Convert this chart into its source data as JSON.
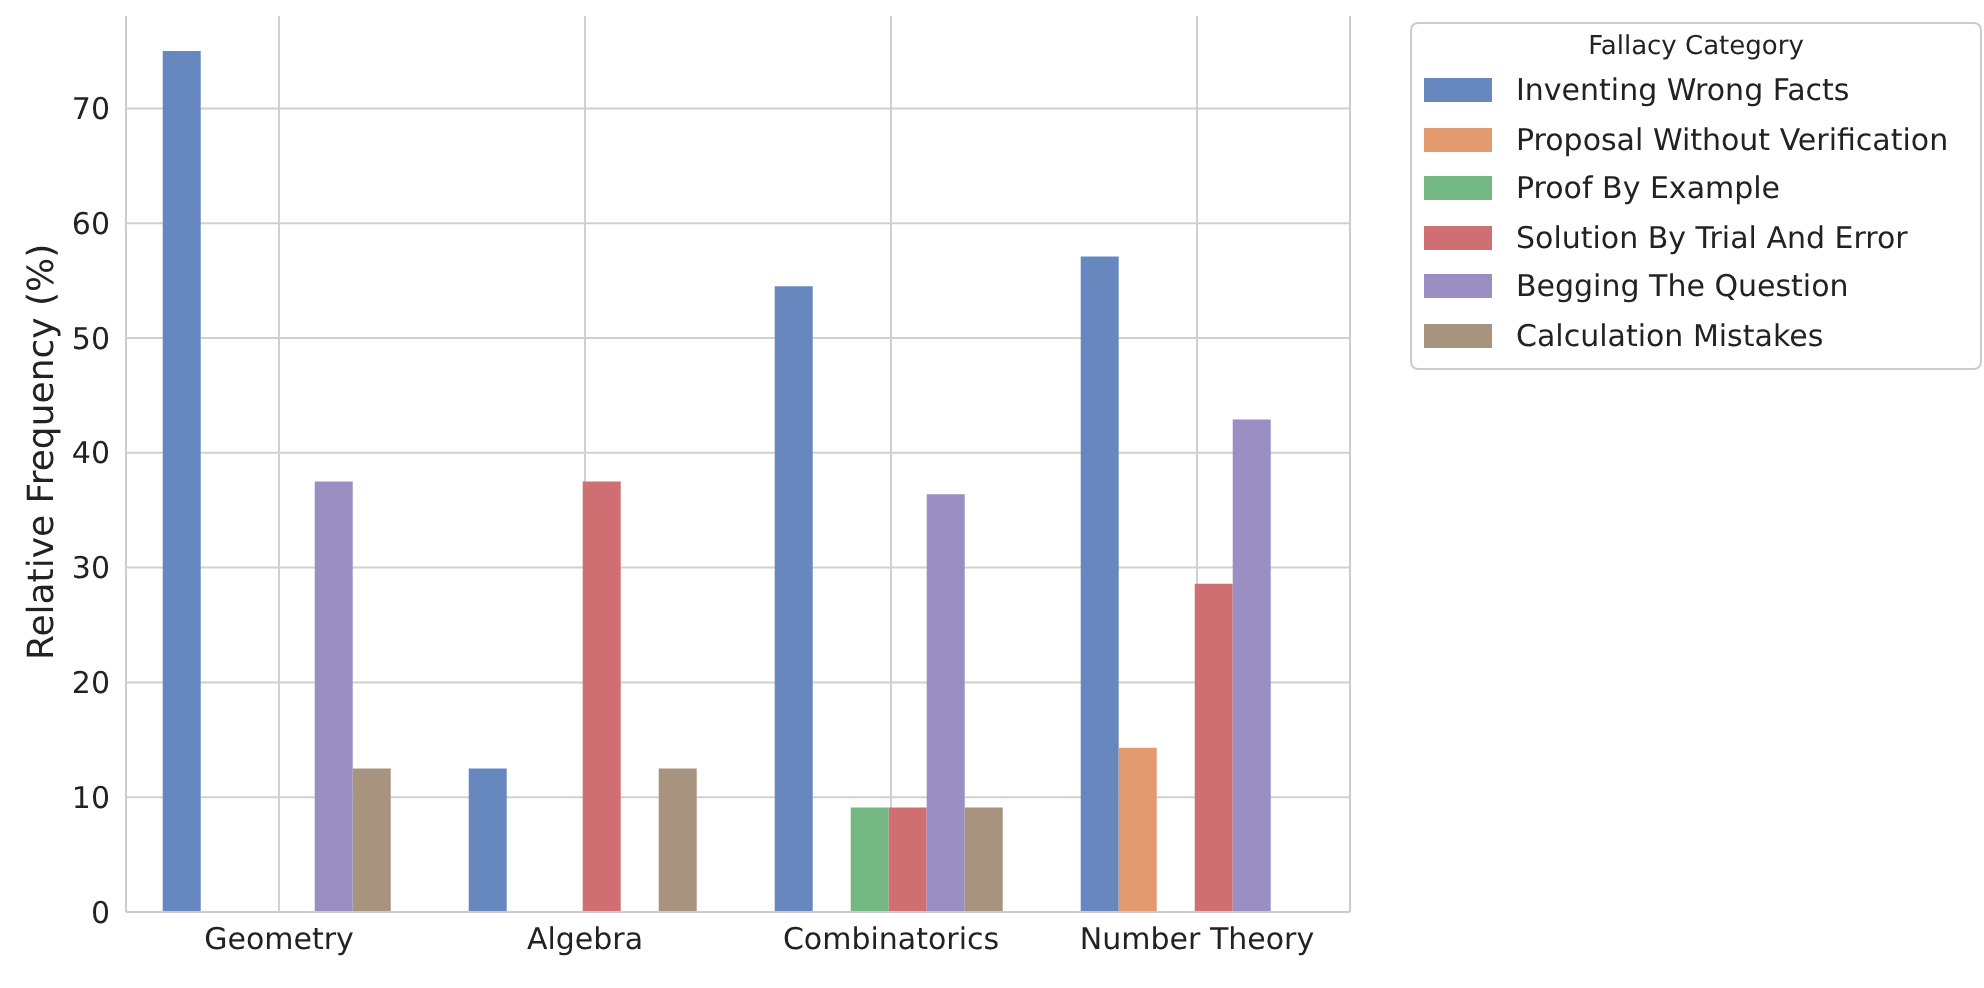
{
  "chart_data": {
    "type": "bar",
    "ylabel": "Relative Frequency (%)",
    "legend_title": "Fallacy Category",
    "categories": [
      "Geometry",
      "Algebra",
      "Combinatorics",
      "Number Theory"
    ],
    "series": [
      {
        "name": "Inventing Wrong Facts",
        "color": "#6788bf",
        "values": [
          75,
          12.5,
          54.5,
          57.1
        ]
      },
      {
        "name": "Proposal Without Verification",
        "color": "#e39a6f",
        "values": [
          0,
          0,
          0,
          14.3
        ]
      },
      {
        "name": "Proof By Example",
        "color": "#74b884",
        "values": [
          0,
          0,
          9.1,
          0
        ]
      },
      {
        "name": "Solution By Trial And Error",
        "color": "#cf6f72",
        "values": [
          0,
          37.5,
          9.1,
          28.6
        ]
      },
      {
        "name": "Begging The Question",
        "color": "#9a8ec2",
        "values": [
          37.5,
          0,
          36.4,
          42.9
        ]
      },
      {
        "name": "Calculation Mistakes",
        "color": "#a8937f",
        "values": [
          12.5,
          12.5,
          9.1,
          0
        ]
      }
    ],
    "ylim": [
      0,
      78.75
    ],
    "yticks": [
      0,
      10,
      20,
      30,
      40,
      50,
      60,
      70
    ],
    "grid": true,
    "legend": "top right"
  }
}
